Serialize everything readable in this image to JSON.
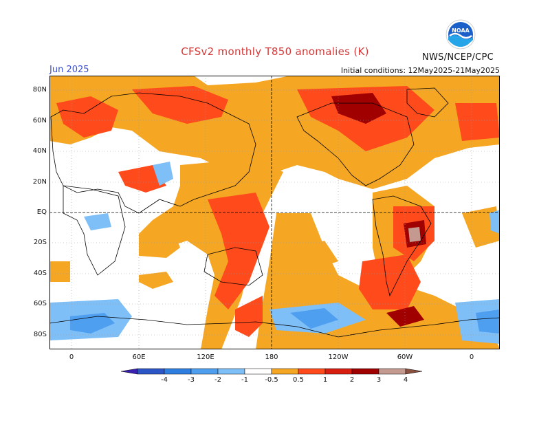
{
  "header": {
    "title": "CFSv2 monthly T850 anomalies (K)",
    "month": "Jun 2025",
    "initial_conditions": "Initial conditions: 12May2025-21May2025",
    "agency": "NWS/NCEP/CPC",
    "logo_text": "NOAA"
  },
  "axes": {
    "lat_labels": [
      "80N",
      "60N",
      "40N",
      "20N",
      "EQ",
      "20S",
      "40S",
      "60S",
      "80S"
    ],
    "lon_labels": [
      "0",
      "60E",
      "120E",
      "180",
      "120W",
      "60W",
      "0"
    ]
  },
  "colorbar": {
    "labels": [
      "-4",
      "-3",
      "-2",
      "-1",
      "-0.5",
      "0.5",
      "1",
      "2",
      "3",
      "4"
    ],
    "colors": [
      "#3a20b0",
      "#2c55c8",
      "#2f7fe0",
      "#4f9ff0",
      "#7fbff8",
      "#ffffff",
      "#f5a623",
      "#ff4a1c",
      "#d81e10",
      "#a00000",
      "#c49a90",
      "#8a5040"
    ]
  },
  "palette": {
    "warm1": "#f5a623",
    "warm2": "#ff4a1c",
    "warm3": "#d81e10",
    "warm4": "#a00000",
    "warm5": "#c49a90",
    "cool1": "#7fbff8",
    "cool2": "#4f9ff0",
    "cool3": "#2f7fe0"
  }
}
